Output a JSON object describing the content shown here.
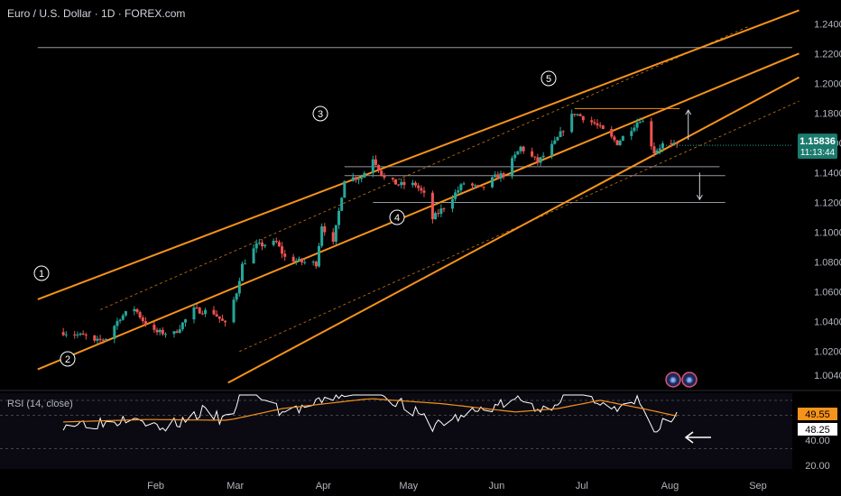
{
  "header": {
    "title": "Euro / U.S. Dollar · 1D · FOREX.com"
  },
  "colors": {
    "background": "#000000",
    "bull": "#26a69a",
    "bear": "#ef5350",
    "channel": "#f7931a",
    "rsi_line": "#ffffff",
    "rsi_ma": "#f7931a"
  },
  "chart_data": [
    {
      "type": "candlestick",
      "title": "Euro / U.S. Dollar · 1D · FOREX.com",
      "x_ticks": [
        "Feb",
        "Mar",
        "Apr",
        "May",
        "Jun",
        "Jul",
        "Aug",
        "Sep"
      ],
      "y_ticks": [
        "1.24000",
        "1.22000",
        "1.20000",
        "1.18000",
        "1.16000",
        "1.14000",
        "1.12000",
        "1.10000",
        "1.08000",
        "1.06000",
        "1.04000",
        "1.02000",
        "1.00400"
      ],
      "ylim": [
        0.995,
        1.245
      ],
      "last_price": "1.15836",
      "countdown": "11:13:44",
      "wave_labels": [
        "1",
        "2",
        "3",
        "4",
        "5"
      ],
      "close_path": [
        [
          "2025-01-02",
          1.033
        ],
        [
          "2025-01-10",
          1.03
        ],
        [
          "2025-01-13",
          1.026
        ],
        [
          "2025-01-17",
          1.029
        ],
        [
          "2025-01-22",
          1.043
        ],
        [
          "2025-01-27",
          1.049
        ],
        [
          "2025-01-30",
          1.041
        ],
        [
          "2025-02-03",
          1.033
        ],
        [
          "2025-02-10",
          1.032
        ],
        [
          "2025-02-17",
          1.048
        ],
        [
          "2025-02-24",
          1.046
        ],
        [
          "2025-02-28",
          1.038
        ],
        [
          "2025-03-04",
          1.06
        ],
        [
          "2025-03-06",
          1.078
        ],
        [
          "2025-03-11",
          1.091
        ],
        [
          "2025-03-18",
          1.093
        ],
        [
          "2025-03-21",
          1.083
        ],
        [
          "2025-03-27",
          1.08
        ],
        [
          "2025-04-01",
          1.079
        ],
        [
          "2025-04-03",
          1.105
        ],
        [
          "2025-04-07",
          1.092
        ],
        [
          "2025-04-11",
          1.136
        ],
        [
          "2025-04-17",
          1.137
        ],
        [
          "2025-04-21",
          1.15
        ],
        [
          "2025-04-25",
          1.136
        ],
        [
          "2025-04-30",
          1.132
        ],
        [
          "2025-05-06",
          1.132
        ],
        [
          "2025-05-09",
          1.125
        ],
        [
          "2025-05-12",
          1.109
        ],
        [
          "2025-05-16",
          1.117
        ],
        [
          "2025-05-23",
          1.133
        ],
        [
          "2025-05-29",
          1.129
        ],
        [
          "2025-06-03",
          1.137
        ],
        [
          "2025-06-06",
          1.139
        ],
        [
          "2025-06-12",
          1.157
        ],
        [
          "2025-06-18",
          1.147
        ],
        [
          "2025-06-24",
          1.16
        ],
        [
          "2025-06-30",
          1.178
        ],
        [
          "2025-07-01",
          1.18
        ],
        [
          "2025-07-08",
          1.173
        ],
        [
          "2025-07-16",
          1.16
        ],
        [
          "2025-07-24",
          1.176
        ],
        [
          "2025-07-25",
          1.174
        ],
        [
          "2025-07-29",
          1.154
        ],
        [
          "2025-08-01",
          1.159
        ],
        [
          "2025-08-04",
          1.158
        ],
        [
          "2025-08-06",
          1.1583
        ]
      ],
      "channel_lines": [
        {
          "style": "solid",
          "from": [
            "2024-12-24",
            1.055
          ],
          "to": [
            "2025-09-18",
            1.249
          ]
        },
        {
          "style": "solid",
          "from": [
            "2024-12-24",
            1.008
          ],
          "to": [
            "2025-09-18",
            1.22
          ]
        },
        {
          "style": "solid",
          "from": [
            "2025-03-01",
            0.999
          ],
          "to": [
            "2025-09-18",
            1.204
          ]
        },
        {
          "style": "dashed",
          "from": [
            "2025-01-15",
            1.048
          ],
          "to": [
            "2025-08-31",
            1.238
          ]
        },
        {
          "style": "dashed",
          "from": [
            "2025-03-05",
            1.02
          ],
          "to": [
            "2025-09-18",
            1.188
          ]
        }
      ],
      "horizontal_levels": [
        {
          "y": 1.224,
          "from": "2024-12-24",
          "to": "2025-09-18",
          "color": "#9598a1"
        },
        {
          "y": 1.183,
          "from": "2025-07-01",
          "to": "2025-08-07",
          "color": "#f7931a"
        },
        {
          "y": 1.144,
          "from": "2025-04-11",
          "to": "2025-08-21",
          "color": "#9598a1"
        },
        {
          "y": 1.138,
          "from": "2025-04-11",
          "to": "2025-08-23",
          "color": "#9598a1"
        },
        {
          "y": 1.12,
          "from": "2025-04-21",
          "to": "2025-08-23",
          "color": "#9598a1"
        }
      ],
      "arrows": [
        {
          "x": "2025-08-10",
          "from": 1.162,
          "to": 1.182
        },
        {
          "x": "2025-08-14",
          "from": 1.14,
          "to": 1.122
        }
      ]
    },
    {
      "type": "line",
      "title": "RSI (14, close)",
      "ylim": [
        20,
        60
      ],
      "y_ticks": [
        "40.00",
        "20.00"
      ],
      "last_values": {
        "ma": "49.55",
        "rsi": "48.25"
      },
      "series": [
        {
          "role": "rsi",
          "points": [
            [
              "2025-01-02",
              45
            ],
            [
              "2025-01-20",
              46
            ],
            [
              "2025-01-27",
              52
            ],
            [
              "2025-02-05",
              41
            ],
            [
              "2025-02-20",
              52
            ],
            [
              "2025-03-01",
              46
            ],
            [
              "2025-03-06",
              65
            ],
            [
              "2025-03-12",
              62
            ],
            [
              "2025-03-20",
              52
            ],
            [
              "2025-04-01",
              56
            ],
            [
              "2025-04-11",
              64
            ],
            [
              "2025-04-21",
              66
            ],
            [
              "2025-05-01",
              57
            ],
            [
              "2025-05-12",
              44
            ],
            [
              "2025-05-20",
              48
            ],
            [
              "2025-06-01",
              55
            ],
            [
              "2025-06-12",
              59
            ],
            [
              "2025-06-20",
              53
            ],
            [
              "2025-06-30",
              66
            ],
            [
              "2025-07-08",
              61
            ],
            [
              "2025-07-16",
              52
            ],
            [
              "2025-07-24",
              59
            ],
            [
              "2025-07-29",
              38
            ],
            [
              "2025-08-01",
              45
            ],
            [
              "2025-08-06",
              48.25
            ]
          ]
        },
        {
          "role": "ma",
          "points": [
            [
              "2025-01-02",
              46
            ],
            [
              "2025-02-01",
              47.5
            ],
            [
              "2025-03-01",
              47
            ],
            [
              "2025-03-20",
              54
            ],
            [
              "2025-04-20",
              60
            ],
            [
              "2025-05-15",
              57
            ],
            [
              "2025-06-10",
              52
            ],
            [
              "2025-06-25",
              54
            ],
            [
              "2025-07-10",
              59
            ],
            [
              "2025-07-25",
              54
            ],
            [
              "2025-08-06",
              49.55
            ]
          ]
        }
      ]
    }
  ]
}
